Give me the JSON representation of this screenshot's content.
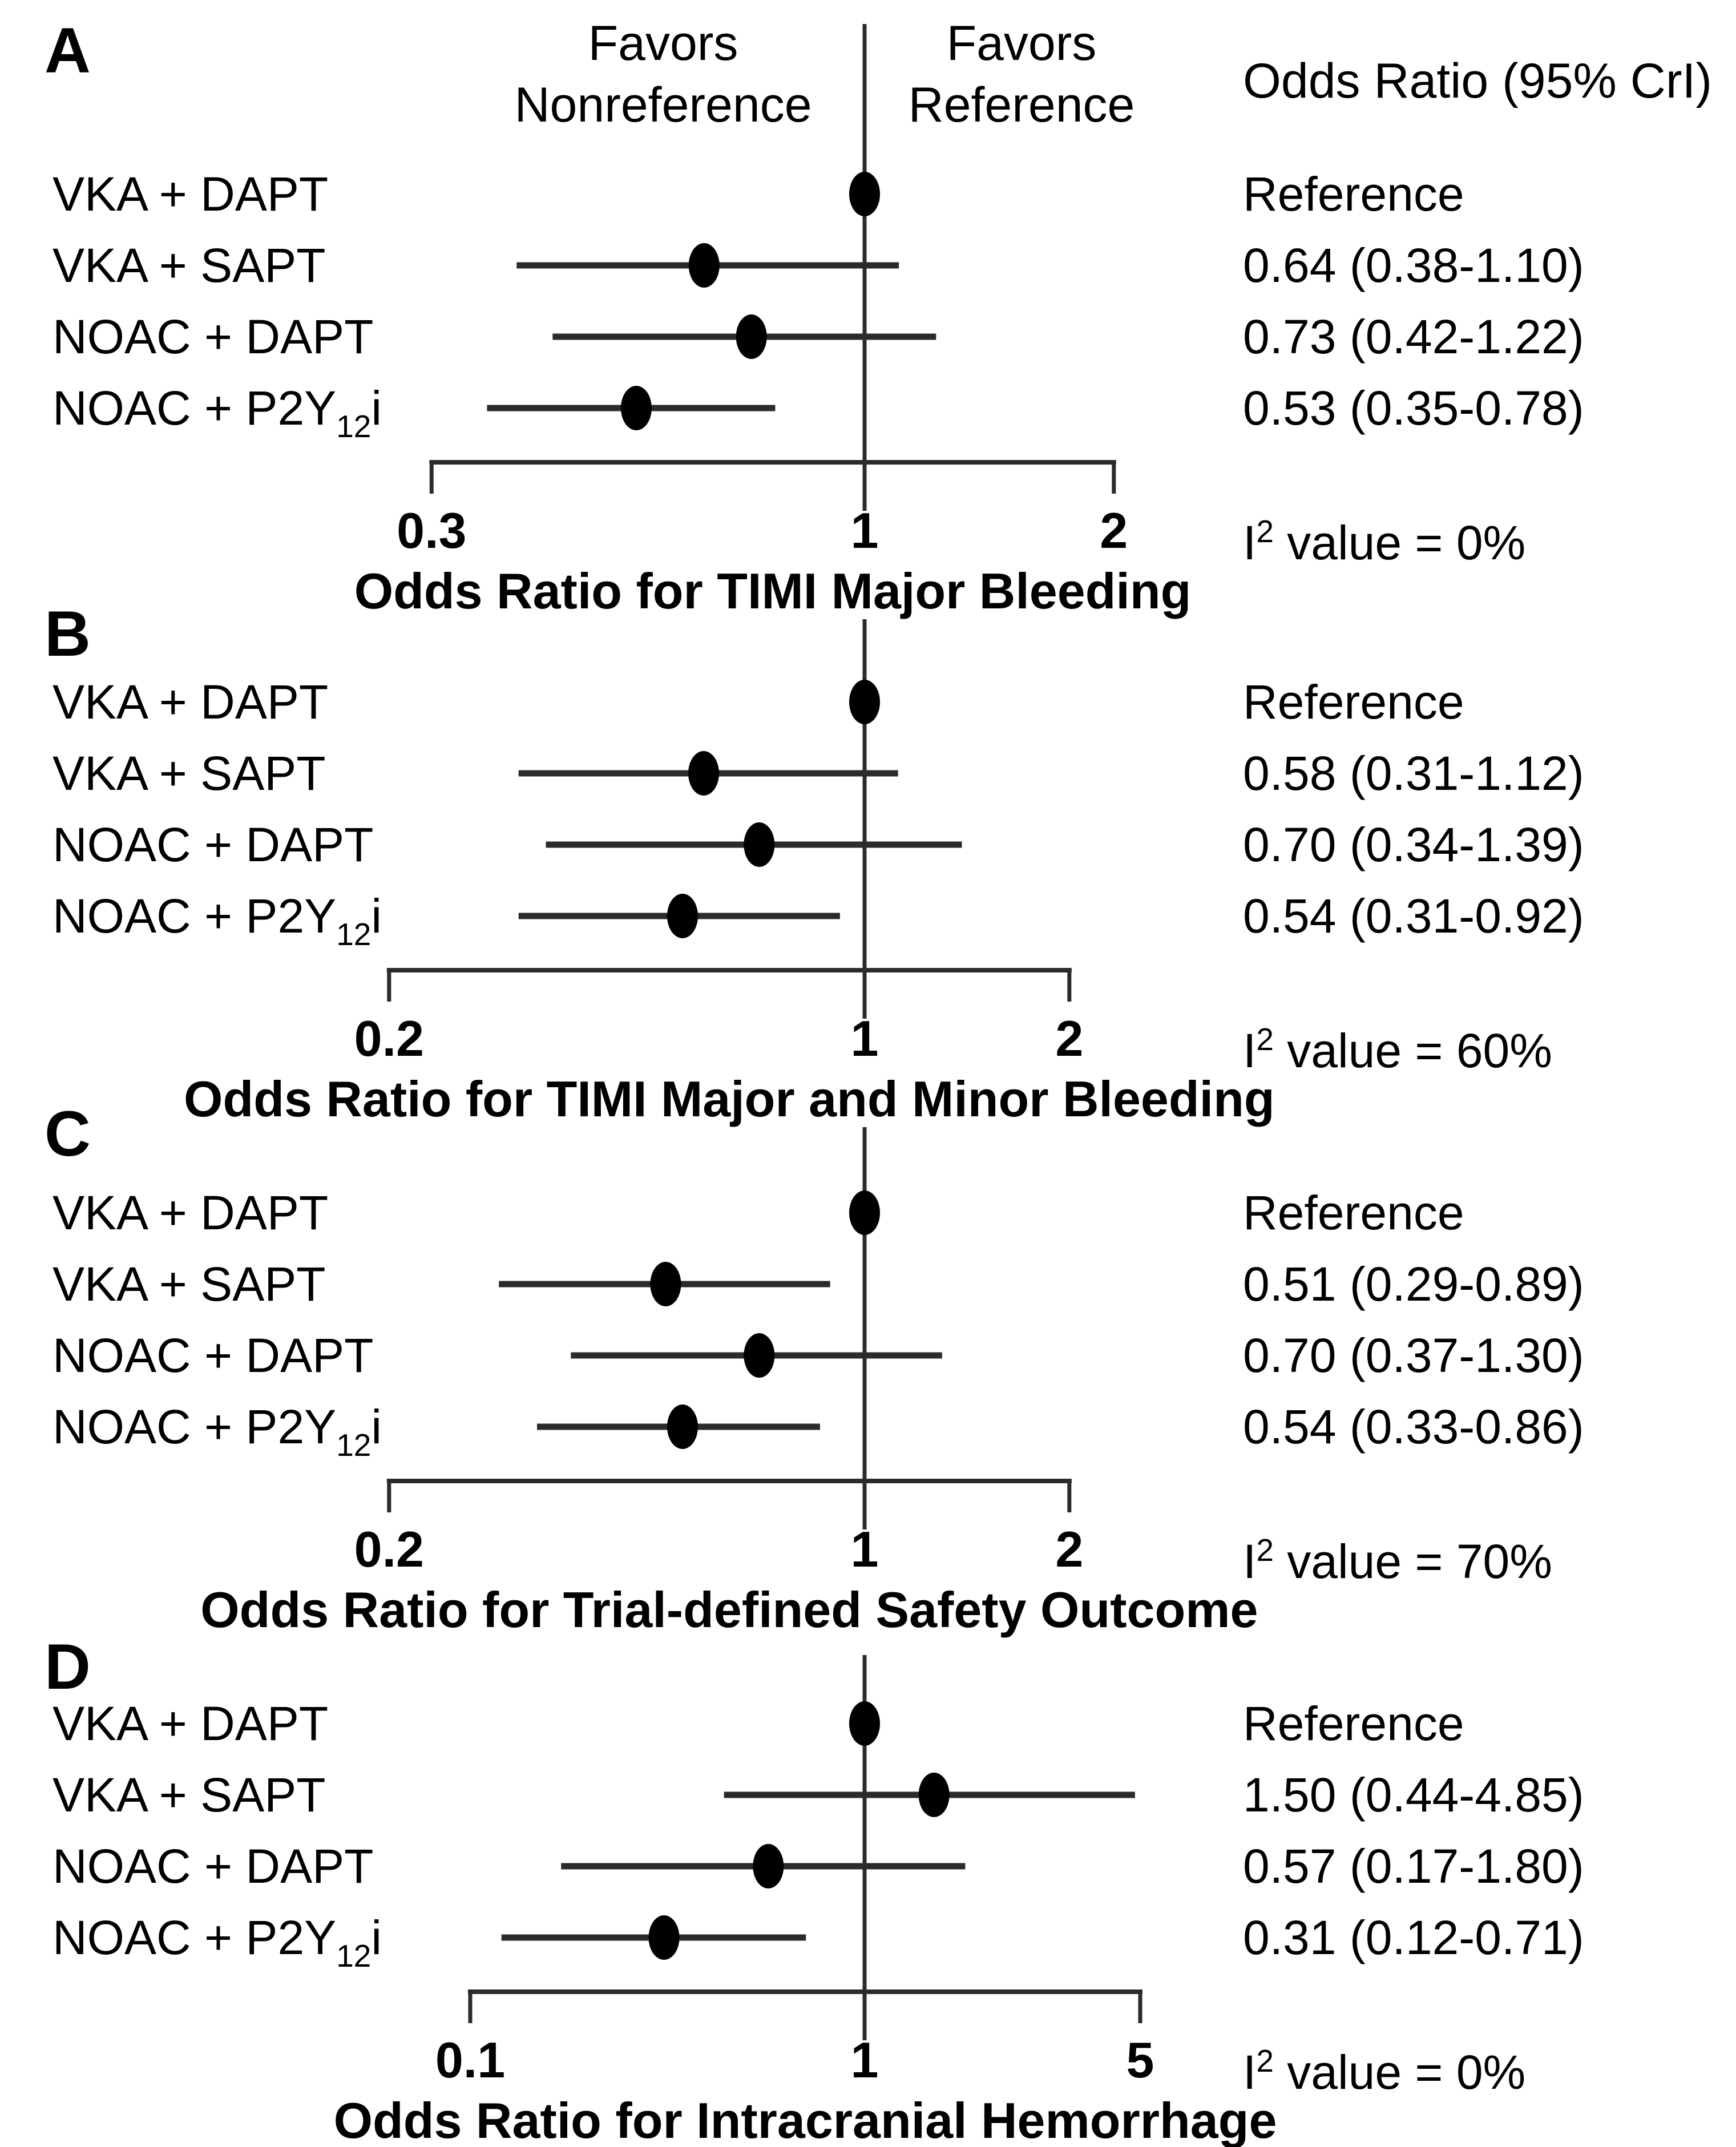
{
  "figure": {
    "header": {
      "favors_left_line1": "Favors",
      "favors_left_line2": "Nonreference",
      "favors_right_line1": "Favors",
      "favors_right_line2": "Reference",
      "or_column_title": "Odds Ratio (95% CrI)"
    },
    "colors": {
      "background": "#ffffff",
      "text": "#000000",
      "line": "#2b2b2b",
      "marker": "#000000"
    }
  },
  "chart_data": [
    {
      "type": "scatter",
      "subtype": "forest-plot",
      "panel": "A",
      "title": "Odds Ratio for TIMI Major Bleeding",
      "x_scale": "log",
      "xlim": [
        0.3,
        2
      ],
      "x_ticks": [
        0.3,
        1,
        2
      ],
      "x_tick_labels": [
        "0.3",
        "1",
        "2"
      ],
      "reference_line_x": 1,
      "legend_position": "none",
      "grid": false,
      "heterogeneity": {
        "prefix": "I",
        "superscript": "2",
        "suffix": " value = 0%",
        "i2_value": "0%"
      },
      "rows": [
        {
          "label_main": "VKA + DAPT",
          "label_sub": "",
          "label_tail": "",
          "or": 1.0,
          "ci_low": null,
          "ci_high": null,
          "or_text": "Reference"
        },
        {
          "label_main": "VKA + SAPT",
          "label_sub": "",
          "label_tail": "",
          "or": 0.64,
          "ci_low": 0.38,
          "ci_high": 1.1,
          "or_text": "0.64 (0.38-1.10)"
        },
        {
          "label_main": "NOAC + DAPT",
          "label_sub": "",
          "label_tail": "",
          "or": 0.73,
          "ci_low": 0.42,
          "ci_high": 1.22,
          "or_text": "0.73 (0.42-1.22)"
        },
        {
          "label_main": "NOAC + P2Y",
          "label_sub": "12",
          "label_tail": "i",
          "or": 0.53,
          "ci_low": 0.35,
          "ci_high": 0.78,
          "or_text": "0.53 (0.35-0.78)"
        }
      ]
    },
    {
      "type": "scatter",
      "subtype": "forest-plot",
      "panel": "B",
      "title": "Odds Ratio for TIMI Major and Minor Bleeding",
      "x_scale": "log",
      "xlim": [
        0.2,
        2
      ],
      "x_ticks": [
        0.2,
        1,
        2
      ],
      "x_tick_labels": [
        "0.2",
        "1",
        "2"
      ],
      "reference_line_x": 1,
      "legend_position": "none",
      "grid": false,
      "heterogeneity": {
        "prefix": "I",
        "superscript": "2",
        "suffix": " value = 60%",
        "i2_value": "60%"
      },
      "rows": [
        {
          "label_main": "VKA + DAPT",
          "label_sub": "",
          "label_tail": "",
          "or": 1.0,
          "ci_low": null,
          "ci_high": null,
          "or_text": "Reference"
        },
        {
          "label_main": "VKA + SAPT",
          "label_sub": "",
          "label_tail": "",
          "or": 0.58,
          "ci_low": 0.31,
          "ci_high": 1.12,
          "or_text": "0.58 (0.31-1.12)"
        },
        {
          "label_main": "NOAC + DAPT",
          "label_sub": "",
          "label_tail": "",
          "or": 0.7,
          "ci_low": 0.34,
          "ci_high": 1.39,
          "or_text": "0.70 (0.34-1.39)"
        },
        {
          "label_main": "NOAC + P2Y",
          "label_sub": "12",
          "label_tail": "i",
          "or": 0.54,
          "ci_low": 0.31,
          "ci_high": 0.92,
          "or_text": "0.54 (0.31-0.92)"
        }
      ]
    },
    {
      "type": "scatter",
      "subtype": "forest-plot",
      "panel": "C",
      "title": "Odds Ratio for Trial-defined Safety Outcome",
      "x_scale": "log",
      "xlim": [
        0.2,
        2
      ],
      "x_ticks": [
        0.2,
        1,
        2
      ],
      "x_tick_labels": [
        "0.2",
        "1",
        "2"
      ],
      "reference_line_x": 1,
      "legend_position": "none",
      "grid": false,
      "heterogeneity": {
        "prefix": "I",
        "superscript": "2",
        "suffix": " value = 70%",
        "i2_value": "70%"
      },
      "rows": [
        {
          "label_main": "VKA + DAPT",
          "label_sub": "",
          "label_tail": "",
          "or": 1.0,
          "ci_low": null,
          "ci_high": null,
          "or_text": "Reference"
        },
        {
          "label_main": "VKA + SAPT",
          "label_sub": "",
          "label_tail": "",
          "or": 0.51,
          "ci_low": 0.29,
          "ci_high": 0.89,
          "or_text": "0.51 (0.29-0.89)"
        },
        {
          "label_main": "NOAC + DAPT",
          "label_sub": "",
          "label_tail": "",
          "or": 0.7,
          "ci_low": 0.37,
          "ci_high": 1.3,
          "or_text": "0.70 (0.37-1.30)"
        },
        {
          "label_main": "NOAC + P2Y",
          "label_sub": "12",
          "label_tail": "i",
          "or": 0.54,
          "ci_low": 0.33,
          "ci_high": 0.86,
          "or_text": "0.54 (0.33-0.86)"
        }
      ]
    },
    {
      "type": "scatter",
      "subtype": "forest-plot",
      "panel": "D",
      "title": "Odds Ratio for Intracranial Hemorrhage",
      "x_scale": "log",
      "xlim": [
        0.1,
        5
      ],
      "x_ticks": [
        0.1,
        1,
        5
      ],
      "x_tick_labels": [
        "0.1",
        "1",
        "5"
      ],
      "reference_line_x": 1,
      "legend_position": "none",
      "grid": false,
      "heterogeneity": {
        "prefix": "I",
        "superscript": "2",
        "suffix": " value = 0%",
        "i2_value": "0%"
      },
      "rows": [
        {
          "label_main": "VKA + DAPT",
          "label_sub": "",
          "label_tail": "",
          "or": 1.0,
          "ci_low": null,
          "ci_high": null,
          "or_text": "Reference"
        },
        {
          "label_main": "VKA + SAPT",
          "label_sub": "",
          "label_tail": "",
          "or": 1.5,
          "ci_low": 0.44,
          "ci_high": 4.85,
          "or_text": "1.50 (0.44-4.85)"
        },
        {
          "label_main": "NOAC + DAPT",
          "label_sub": "",
          "label_tail": "",
          "or": 0.57,
          "ci_low": 0.17,
          "ci_high": 1.8,
          "or_text": "0.57 (0.17-1.80)"
        },
        {
          "label_main": "NOAC + P2Y",
          "label_sub": "12",
          "label_tail": "i",
          "or": 0.31,
          "ci_low": 0.12,
          "ci_high": 0.71,
          "or_text": "0.31 (0.12-0.71)"
        }
      ]
    }
  ]
}
